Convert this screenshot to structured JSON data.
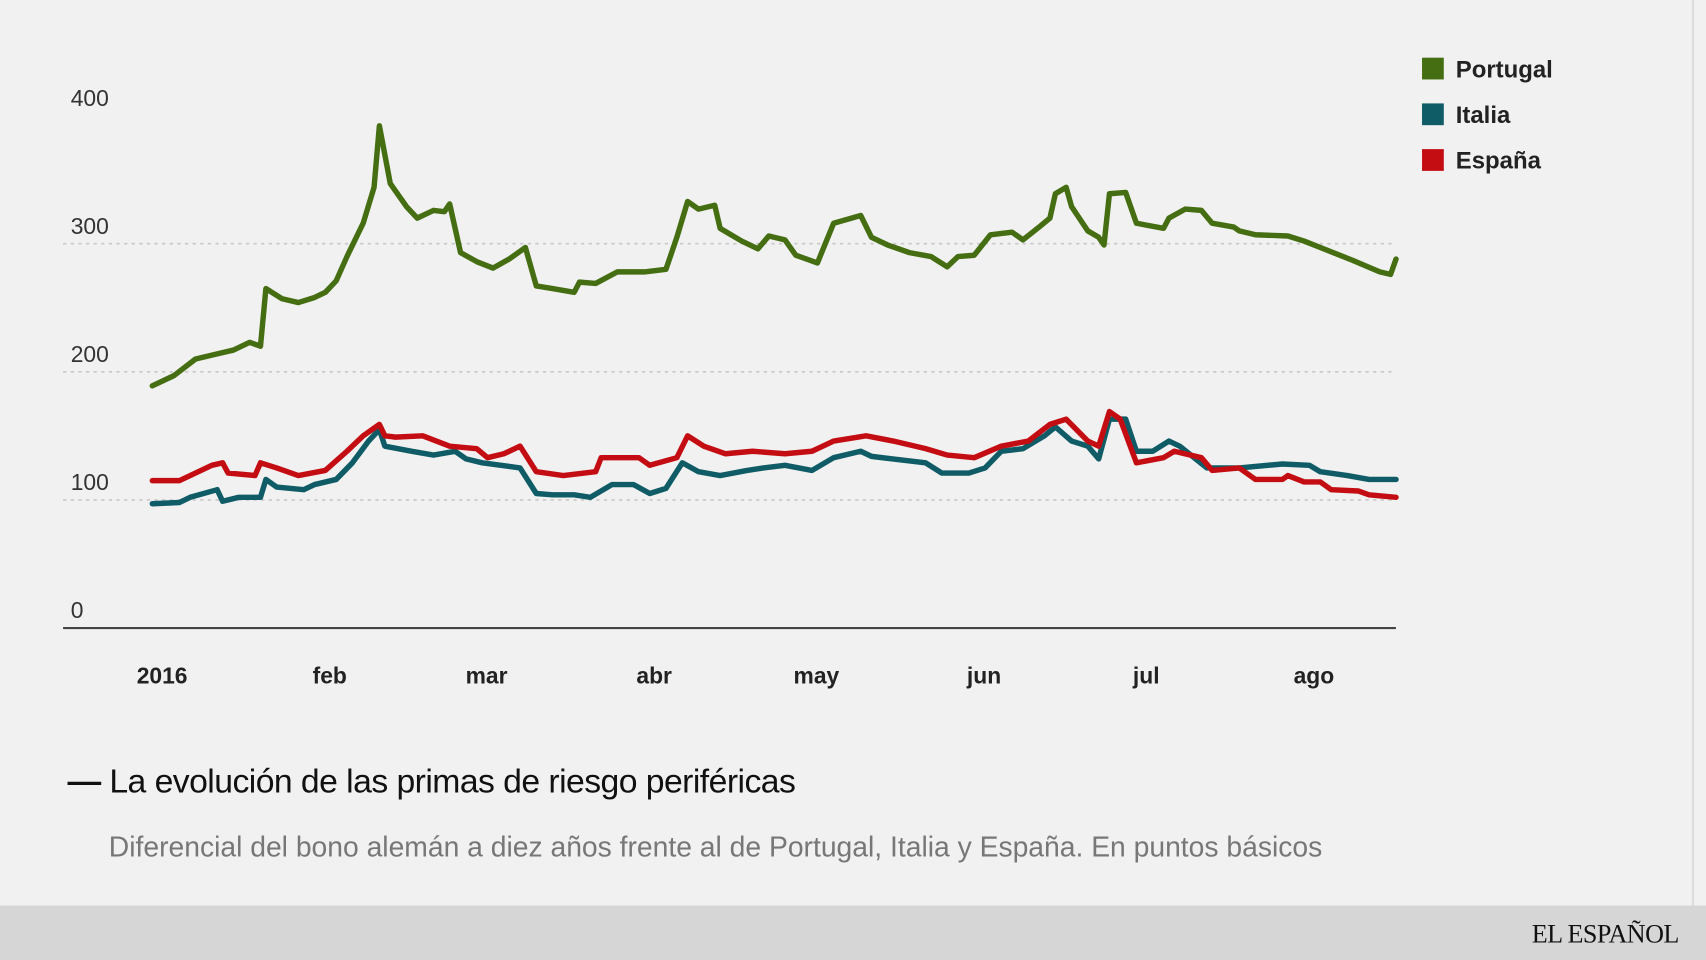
{
  "chart_data": {
    "type": "line",
    "title": "La evolución de las primas de riesgo periféricas",
    "subtitle": "Diferencial del bono alemán a diez años frente al de Portugal, Italia y España. En puntos básicos",
    "ylim": [
      0,
      400
    ],
    "yticks": [
      "0",
      "100",
      "200",
      "300",
      "400"
    ],
    "xticks": [
      {
        "label": "2016",
        "date": "2016-01-01"
      },
      {
        "label": "feb",
        "date": "2016-02-01"
      },
      {
        "label": "mar",
        "date": "2016-03-01"
      },
      {
        "label": "abr",
        "date": "2016-04-01"
      },
      {
        "label": "may",
        "date": "2016-05-01"
      },
      {
        "label": "jun",
        "date": "2016-06-01"
      },
      {
        "label": "jul",
        "date": "2016-07-01"
      },
      {
        "label": "ago",
        "date": "2016-08-01"
      }
    ],
    "grid": true,
    "legend_position": "top-right",
    "series": [
      {
        "name": "Portugal",
        "color": "#456e12",
        "points": [
          [
            "2016-01-01",
            189
          ],
          [
            "2016-01-05",
            197
          ],
          [
            "2016-01-09",
            210
          ],
          [
            "2016-01-13",
            214
          ],
          [
            "2016-01-16",
            217
          ],
          [
            "2016-01-19",
            223
          ],
          [
            "2016-01-21",
            220
          ],
          [
            "2016-01-22",
            265
          ],
          [
            "2016-01-25",
            257
          ],
          [
            "2016-01-28",
            254
          ],
          [
            "2016-01-31",
            258
          ],
          [
            "2016-02-02",
            262
          ],
          [
            "2016-02-04",
            271
          ],
          [
            "2016-02-06",
            290
          ],
          [
            "2016-02-09",
            316
          ],
          [
            "2016-02-11",
            344
          ],
          [
            "2016-02-12",
            392
          ],
          [
            "2016-02-14",
            347
          ],
          [
            "2016-02-17",
            329
          ],
          [
            "2016-02-19",
            320
          ],
          [
            "2016-02-22",
            326
          ],
          [
            "2016-02-24",
            325
          ],
          [
            "2016-02-25",
            331
          ],
          [
            "2016-02-27",
            293
          ],
          [
            "2016-03-01",
            286
          ],
          [
            "2016-03-04",
            281
          ],
          [
            "2016-03-07",
            288
          ],
          [
            "2016-03-10",
            297
          ],
          [
            "2016-03-12",
            267
          ],
          [
            "2016-03-15",
            265
          ],
          [
            "2016-03-19",
            262
          ],
          [
            "2016-03-20",
            270
          ],
          [
            "2016-03-23",
            269
          ],
          [
            "2016-03-27",
            278
          ],
          [
            "2016-04-01",
            278
          ],
          [
            "2016-04-05",
            280
          ],
          [
            "2016-04-07",
            305
          ],
          [
            "2016-04-09",
            333
          ],
          [
            "2016-04-11",
            327
          ],
          [
            "2016-04-14",
            330
          ],
          [
            "2016-04-15",
            312
          ],
          [
            "2016-04-19",
            302
          ],
          [
            "2016-04-22",
            296
          ],
          [
            "2016-04-24",
            306
          ],
          [
            "2016-04-27",
            303
          ],
          [
            "2016-04-29",
            291
          ],
          [
            "2016-05-03",
            285
          ],
          [
            "2016-05-06",
            316
          ],
          [
            "2016-05-11",
            322
          ],
          [
            "2016-05-13",
            305
          ],
          [
            "2016-05-16",
            299
          ],
          [
            "2016-05-20",
            293
          ],
          [
            "2016-05-24",
            290
          ],
          [
            "2016-05-27",
            282
          ],
          [
            "2016-05-29",
            290
          ],
          [
            "2016-06-01",
            291
          ],
          [
            "2016-06-04",
            307
          ],
          [
            "2016-06-08",
            309
          ],
          [
            "2016-06-10",
            303
          ],
          [
            "2016-06-13",
            313
          ],
          [
            "2016-06-15",
            320
          ],
          [
            "2016-06-16",
            339
          ],
          [
            "2016-06-18",
            344
          ],
          [
            "2016-06-19",
            329
          ],
          [
            "2016-06-22",
            310
          ],
          [
            "2016-06-24",
            305
          ],
          [
            "2016-06-25",
            299
          ],
          [
            "2016-06-26",
            339
          ],
          [
            "2016-06-29",
            340
          ],
          [
            "2016-07-01",
            316
          ],
          [
            "2016-07-06",
            312
          ],
          [
            "2016-07-07",
            320
          ],
          [
            "2016-07-10",
            327
          ],
          [
            "2016-07-13",
            326
          ],
          [
            "2016-07-15",
            316
          ],
          [
            "2016-07-19",
            313
          ],
          [
            "2016-07-20",
            310
          ],
          [
            "2016-07-23",
            307
          ],
          [
            "2016-07-29",
            306
          ],
          [
            "2016-08-01",
            302
          ],
          [
            "2016-08-04",
            297
          ],
          [
            "2016-08-10",
            287
          ],
          [
            "2016-08-15",
            278
          ],
          [
            "2016-08-17",
            276
          ],
          [
            "2016-08-18",
            288
          ]
        ]
      },
      {
        "name": "Italia",
        "color": "#0f5c66",
        "points": [
          [
            "2016-01-01",
            97
          ],
          [
            "2016-01-06",
            98
          ],
          [
            "2016-01-08",
            102
          ],
          [
            "2016-01-13",
            108
          ],
          [
            "2016-01-14",
            99
          ],
          [
            "2016-01-17",
            102
          ],
          [
            "2016-01-21",
            102
          ],
          [
            "2016-01-22",
            116
          ],
          [
            "2016-01-24",
            110
          ],
          [
            "2016-01-29",
            108
          ],
          [
            "2016-01-31",
            112
          ],
          [
            "2016-02-04",
            116
          ],
          [
            "2016-02-07",
            129
          ],
          [
            "2016-02-10",
            146
          ],
          [
            "2016-02-12",
            155
          ],
          [
            "2016-02-13",
            142
          ],
          [
            "2016-02-18",
            138
          ],
          [
            "2016-02-22",
            135
          ],
          [
            "2016-02-26",
            138
          ],
          [
            "2016-02-28",
            132
          ],
          [
            "2016-03-02",
            129
          ],
          [
            "2016-03-09",
            125
          ],
          [
            "2016-03-12",
            105
          ],
          [
            "2016-03-15",
            104
          ],
          [
            "2016-03-19",
            104
          ],
          [
            "2016-03-22",
            102
          ],
          [
            "2016-03-26",
            112
          ],
          [
            "2016-03-30",
            112
          ],
          [
            "2016-04-02",
            105
          ],
          [
            "2016-04-05",
            109
          ],
          [
            "2016-04-08",
            129
          ],
          [
            "2016-04-11",
            122
          ],
          [
            "2016-04-15",
            119
          ],
          [
            "2016-04-20",
            123
          ],
          [
            "2016-04-23",
            125
          ],
          [
            "2016-04-27",
            127
          ],
          [
            "2016-05-02",
            123
          ],
          [
            "2016-05-06",
            133
          ],
          [
            "2016-05-11",
            138
          ],
          [
            "2016-05-13",
            134
          ],
          [
            "2016-05-23",
            129
          ],
          [
            "2016-05-26",
            121
          ],
          [
            "2016-05-31",
            121
          ],
          [
            "2016-06-03",
            125
          ],
          [
            "2016-06-06",
            138
          ],
          [
            "2016-06-10",
            140
          ],
          [
            "2016-06-14",
            150
          ],
          [
            "2016-06-16",
            157
          ],
          [
            "2016-06-19",
            146
          ],
          [
            "2016-06-22",
            142
          ],
          [
            "2016-06-24",
            132
          ],
          [
            "2016-06-26",
            163
          ],
          [
            "2016-06-29",
            163
          ],
          [
            "2016-07-01",
            138
          ],
          [
            "2016-07-04",
            138
          ],
          [
            "2016-07-07",
            146
          ],
          [
            "2016-07-09",
            142
          ],
          [
            "2016-07-14",
            125
          ],
          [
            "2016-07-20",
            125
          ],
          [
            "2016-07-28",
            128
          ],
          [
            "2016-08-02",
            127
          ],
          [
            "2016-08-04",
            122
          ],
          [
            "2016-08-09",
            119
          ],
          [
            "2016-08-13",
            116
          ],
          [
            "2016-08-18",
            116
          ]
        ]
      },
      {
        "name": "España",
        "color": "#c40d12",
        "points": [
          [
            "2016-01-01",
            115
          ],
          [
            "2016-01-06",
            115
          ],
          [
            "2016-01-08",
            119
          ],
          [
            "2016-01-12",
            127
          ],
          [
            "2016-01-14",
            129
          ],
          [
            "2016-01-15",
            121
          ],
          [
            "2016-01-20",
            119
          ],
          [
            "2016-01-21",
            129
          ],
          [
            "2016-01-24",
            125
          ],
          [
            "2016-01-28",
            119
          ],
          [
            "2016-02-02",
            123
          ],
          [
            "2016-02-06",
            138
          ],
          [
            "2016-02-09",
            150
          ],
          [
            "2016-02-12",
            159
          ],
          [
            "2016-02-13",
            150
          ],
          [
            "2016-02-15",
            149
          ],
          [
            "2016-02-20",
            150
          ],
          [
            "2016-02-25",
            142
          ],
          [
            "2016-03-01",
            140
          ],
          [
            "2016-03-03",
            133
          ],
          [
            "2016-03-06",
            136
          ],
          [
            "2016-03-09",
            142
          ],
          [
            "2016-03-12",
            122
          ],
          [
            "2016-03-17",
            119
          ],
          [
            "2016-03-23",
            122
          ],
          [
            "2016-03-24",
            133
          ],
          [
            "2016-03-31",
            133
          ],
          [
            "2016-04-02",
            127
          ],
          [
            "2016-04-07",
            133
          ],
          [
            "2016-04-09",
            150
          ],
          [
            "2016-04-12",
            142
          ],
          [
            "2016-04-16",
            136
          ],
          [
            "2016-04-21",
            138
          ],
          [
            "2016-04-27",
            136
          ],
          [
            "2016-05-02",
            138
          ],
          [
            "2016-05-06",
            146
          ],
          [
            "2016-05-12",
            150
          ],
          [
            "2016-05-17",
            146
          ],
          [
            "2016-05-23",
            140
          ],
          [
            "2016-05-27",
            135
          ],
          [
            "2016-06-01",
            133
          ],
          [
            "2016-06-06",
            142
          ],
          [
            "2016-06-11",
            146
          ],
          [
            "2016-06-15",
            159
          ],
          [
            "2016-06-18",
            163
          ],
          [
            "2016-06-22",
            146
          ],
          [
            "2016-06-24",
            142
          ],
          [
            "2016-06-26",
            169
          ],
          [
            "2016-06-28",
            163
          ],
          [
            "2016-07-01",
            129
          ],
          [
            "2016-07-06",
            133
          ],
          [
            "2016-07-08",
            138
          ],
          [
            "2016-07-13",
            133
          ],
          [
            "2016-07-15",
            123
          ],
          [
            "2016-07-20",
            125
          ],
          [
            "2016-07-23",
            116
          ],
          [
            "2016-07-28",
            116
          ],
          [
            "2016-07-29",
            119
          ],
          [
            "2016-08-01",
            114
          ],
          [
            "2016-08-04",
            114
          ],
          [
            "2016-08-06",
            108
          ],
          [
            "2016-08-11",
            107
          ],
          [
            "2016-08-13",
            104
          ],
          [
            "2016-08-18",
            102
          ]
        ]
      }
    ]
  },
  "title_dash": "—",
  "footer": {
    "logo": "EL ESPAÑOL"
  }
}
